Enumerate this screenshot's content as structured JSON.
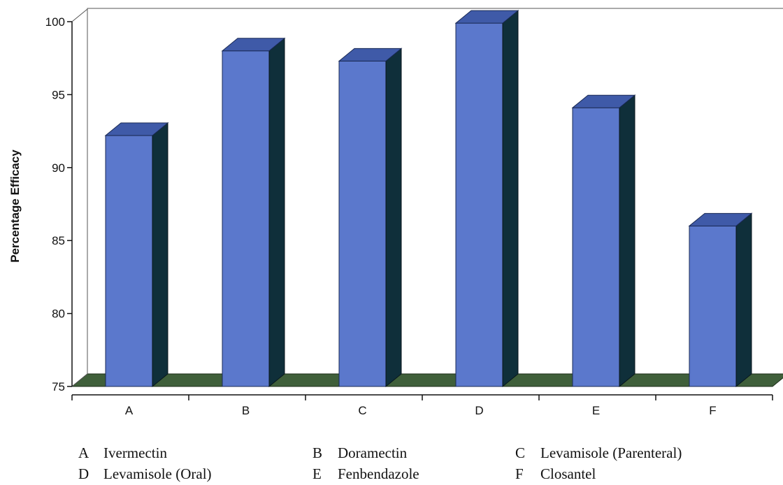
{
  "chart_data": {
    "type": "bar",
    "title": "",
    "xlabel": "",
    "ylabel": "Percentage Efficacy",
    "ylim": [
      75,
      100
    ],
    "yticks": [
      75,
      80,
      85,
      90,
      95,
      100
    ],
    "categories": [
      "A",
      "B",
      "C",
      "D",
      "E",
      "F"
    ],
    "values": [
      92.2,
      98.0,
      97.3,
      99.9,
      94.1,
      86.0
    ],
    "colors": {
      "bar_front": "#5b78cc",
      "bar_top": "#3f5aa8",
      "bar_side": "#0f2f3a",
      "floor": "#3f5f3a",
      "axis": "#111111"
    }
  },
  "legend": [
    {
      "letter": "A",
      "name": "Ivermectin"
    },
    {
      "letter": "B",
      "name": "Doramectin"
    },
    {
      "letter": "C",
      "name": "Levamisole (Parenteral)"
    },
    {
      "letter": "D",
      "name": "Levamisole (Oral)"
    },
    {
      "letter": "E",
      "name": "Fenbendazole"
    },
    {
      "letter": "F",
      "name": "Closantel"
    }
  ]
}
